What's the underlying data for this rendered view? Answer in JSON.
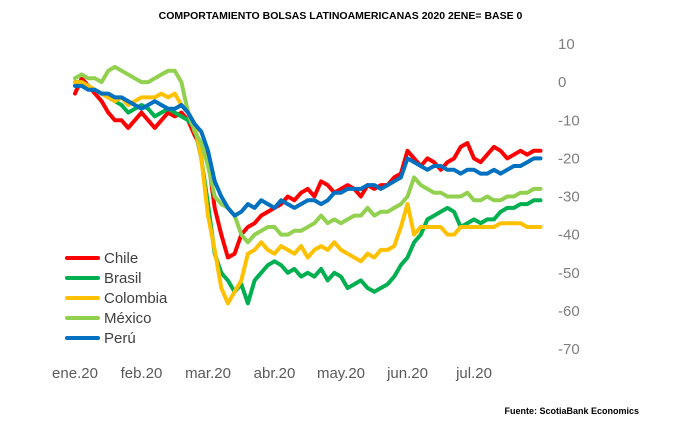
{
  "title": "COMPORTAMIENTO BOLSAS LATINOAMERICANAS 2020   2ENE= BASE 0",
  "source": "Fuente: ScotiaBank Economics",
  "chart_data": {
    "type": "line",
    "title": "COMPORTAMIENTO BOLSAS LATINOAMERICANAS 2020   2ENE= BASE 0",
    "xlabel": "",
    "ylabel": "",
    "ylim": [
      -70,
      10
    ],
    "yticks": [
      10,
      0,
      -10,
      -20,
      -30,
      -40,
      -50,
      -60,
      -70
    ],
    "y_axis_position": "right",
    "x_tick_labels": [
      "ene.20",
      "feb.20",
      "mar.20",
      "abr.20",
      "may.20",
      "jun.20",
      "jul.20"
    ],
    "x_tick_positions": [
      0,
      1,
      2,
      3,
      4,
      5,
      6
    ],
    "legend_position": "bottom-left",
    "grid": false,
    "series": [
      {
        "name": "Chile",
        "color": "#ff0000",
        "x": [
          0,
          0.1,
          0.2,
          0.3,
          0.4,
          0.5,
          0.6,
          0.7,
          0.8,
          0.9,
          1,
          1.1,
          1.2,
          1.3,
          1.4,
          1.5,
          1.6,
          1.7,
          1.8,
          1.9,
          2,
          2.1,
          2.2,
          2.3,
          2.4,
          2.5,
          2.6,
          2.7,
          2.8,
          2.9,
          3,
          3.1,
          3.2,
          3.3,
          3.4,
          3.5,
          3.6,
          3.7,
          3.8,
          3.9,
          4,
          4.1,
          4.2,
          4.3,
          4.4,
          4.5,
          4.6,
          4.7,
          4.8,
          4.9,
          5,
          5.1,
          5.2,
          5.3,
          5.4,
          5.5,
          5.6,
          5.7,
          5.8,
          5.9,
          6,
          6.1,
          6.2,
          6.3,
          6.4,
          6.5,
          6.6,
          6.7,
          6.8,
          6.9,
          7
        ],
        "y": [
          -3,
          1,
          -1,
          -3,
          -5,
          -8,
          -10,
          -10,
          -12,
          -10,
          -8,
          -10,
          -12,
          -10,
          -8,
          -9,
          -8,
          -10,
          -14,
          -17,
          -20,
          -33,
          -40,
          -46,
          -45,
          -40,
          -38,
          -37,
          -35,
          -34,
          -33,
          -32,
          -30,
          -31,
          -29,
          -28,
          -30,
          -26,
          -27,
          -29,
          -28,
          -27,
          -28,
          -30,
          -27,
          -28,
          -27,
          -27,
          -25,
          -24,
          -18,
          -20,
          -22,
          -20,
          -21,
          -23,
          -21,
          -20,
          -17,
          -16,
          -20,
          -21,
          -19,
          -17,
          -18,
          -20,
          -19,
          -18,
          -19,
          -18,
          -18
        ]
      },
      {
        "name": "Brasil",
        "color": "#00b050",
        "x": [
          0,
          0.1,
          0.2,
          0.3,
          0.4,
          0.5,
          0.6,
          0.7,
          0.8,
          0.9,
          1,
          1.1,
          1.2,
          1.3,
          1.4,
          1.5,
          1.6,
          1.7,
          1.8,
          1.9,
          2,
          2.1,
          2.2,
          2.3,
          2.4,
          2.5,
          2.6,
          2.7,
          2.8,
          2.9,
          3,
          3.1,
          3.2,
          3.3,
          3.4,
          3.5,
          3.6,
          3.7,
          3.8,
          3.9,
          4,
          4.1,
          4.2,
          4.3,
          4.4,
          4.5,
          4.6,
          4.7,
          4.8,
          4.9,
          5,
          5.1,
          5.2,
          5.3,
          5.4,
          5.5,
          5.6,
          5.7,
          5.8,
          5.9,
          6,
          6.1,
          6.2,
          6.3,
          6.4,
          6.5,
          6.6,
          6.7,
          6.8,
          6.9,
          7
        ],
        "y": [
          0,
          0,
          -1,
          -2,
          -3,
          -4,
          -5,
          -6,
          -8,
          -7,
          -6,
          -7,
          -9,
          -8,
          -7,
          -8,
          -9,
          -10,
          -12,
          -20,
          -32,
          -45,
          -50,
          -52,
          -55,
          -53,
          -58,
          -52,
          -50,
          -48,
          -47,
          -48,
          -50,
          -49,
          -51,
          -50,
          -51,
          -49,
          -52,
          -50,
          -51,
          -54,
          -53,
          -52,
          -54,
          -55,
          -54,
          -53,
          -51,
          -48,
          -46,
          -42,
          -40,
          -36,
          -35,
          -34,
          -33,
          -34,
          -38,
          -37,
          -36,
          -37,
          -36,
          -36,
          -34,
          -33,
          -33,
          -32,
          -32,
          -31,
          -31
        ]
      },
      {
        "name": "Colombia",
        "color": "#ffc000",
        "x": [
          0,
          0.1,
          0.2,
          0.3,
          0.4,
          0.5,
          0.6,
          0.7,
          0.8,
          0.9,
          1,
          1.1,
          1.2,
          1.3,
          1.4,
          1.5,
          1.6,
          1.7,
          1.8,
          1.9,
          2,
          2.1,
          2.2,
          2.3,
          2.4,
          2.5,
          2.6,
          2.7,
          2.8,
          2.9,
          3,
          3.1,
          3.2,
          3.3,
          3.4,
          3.5,
          3.6,
          3.7,
          3.8,
          3.9,
          4,
          4.1,
          4.2,
          4.3,
          4.4,
          4.5,
          4.6,
          4.7,
          4.8,
          4.9,
          5,
          5.1,
          5.2,
          5.3,
          5.4,
          5.5,
          5.6,
          5.7,
          5.8,
          5.9,
          6,
          6.1,
          6.2,
          6.3,
          6.4,
          6.5,
          6.6,
          6.7,
          6.8,
          6.9,
          7
        ],
        "y": [
          0,
          0,
          -1,
          -2,
          -3,
          -4,
          -5,
          -4,
          -6,
          -5,
          -4,
          -4,
          -4,
          -3,
          -4,
          -3,
          -6,
          -8,
          -11,
          -20,
          -35,
          -44,
          -54,
          -58,
          -55,
          -52,
          -45,
          -44,
          -42,
          -44,
          -45,
          -43,
          -44,
          -45,
          -43,
          -46,
          -44,
          -43,
          -44,
          -42,
          -44,
          -45,
          -46,
          -47,
          -45,
          -46,
          -44,
          -44,
          -43,
          -38,
          -32,
          -40,
          -38,
          -38,
          -38,
          -38,
          -40,
          -40,
          -38,
          -38,
          -38,
          -38,
          -38,
          -38,
          -37,
          -37,
          -37,
          -37,
          -38,
          -38,
          -38
        ]
      },
      {
        "name": "México",
        "color": "#92d050",
        "x": [
          0,
          0.1,
          0.2,
          0.3,
          0.4,
          0.5,
          0.6,
          0.7,
          0.8,
          0.9,
          1,
          1.1,
          1.2,
          1.3,
          1.4,
          1.5,
          1.6,
          1.7,
          1.8,
          1.9,
          2,
          2.1,
          2.2,
          2.3,
          2.4,
          2.5,
          2.6,
          2.7,
          2.8,
          2.9,
          3,
          3.1,
          3.2,
          3.3,
          3.4,
          3.5,
          3.6,
          3.7,
          3.8,
          3.9,
          4,
          4.1,
          4.2,
          4.3,
          4.4,
          4.5,
          4.6,
          4.7,
          4.8,
          4.9,
          5,
          5.1,
          5.2,
          5.3,
          5.4,
          5.5,
          5.6,
          5.7,
          5.8,
          5.9,
          6,
          6.1,
          6.2,
          6.3,
          6.4,
          6.5,
          6.6,
          6.7,
          6.8,
          6.9,
          7
        ],
        "y": [
          1,
          2,
          1,
          1,
          0,
          3,
          4,
          3,
          2,
          1,
          0,
          0,
          1,
          2,
          3,
          3,
          0,
          -8,
          -13,
          -16,
          -22,
          -30,
          -32,
          -33,
          -35,
          -40,
          -42,
          -40,
          -39,
          -38,
          -38,
          -40,
          -40,
          -39,
          -39,
          -38,
          -37,
          -35,
          -37,
          -36,
          -37,
          -36,
          -35,
          -35,
          -33,
          -35,
          -34,
          -34,
          -33,
          -32,
          -30,
          -25,
          -27,
          -28,
          -29,
          -29,
          -30,
          -30,
          -30,
          -29,
          -31,
          -31,
          -30,
          -31,
          -31,
          -30,
          -30,
          -29,
          -29,
          -28,
          -28
        ]
      },
      {
        "name": "Perú",
        "color": "#0070c0",
        "x": [
          0,
          0.1,
          0.2,
          0.3,
          0.4,
          0.5,
          0.6,
          0.7,
          0.8,
          0.9,
          1,
          1.1,
          1.2,
          1.3,
          1.4,
          1.5,
          1.6,
          1.7,
          1.8,
          1.9,
          2,
          2.1,
          2.2,
          2.3,
          2.4,
          2.5,
          2.6,
          2.7,
          2.8,
          2.9,
          3,
          3.1,
          3.2,
          3.3,
          3.4,
          3.5,
          3.6,
          3.7,
          3.8,
          3.9,
          4,
          4.1,
          4.2,
          4.3,
          4.4,
          4.5,
          4.6,
          4.7,
          4.8,
          4.9,
          5,
          5.1,
          5.2,
          5.3,
          5.4,
          5.5,
          5.6,
          5.7,
          5.8,
          5.9,
          6,
          6.1,
          6.2,
          6.3,
          6.4,
          6.5,
          6.6,
          6.7,
          6.8,
          6.9,
          7
        ],
        "y": [
          -1,
          -1,
          -2,
          -2,
          -3,
          -3,
          -4,
          -4,
          -5,
          -6,
          -7,
          -6,
          -5,
          -6,
          -7,
          -7,
          -6,
          -8,
          -11,
          -13,
          -18,
          -26,
          -30,
          -33,
          -35,
          -34,
          -32,
          -33,
          -31,
          -32,
          -33,
          -31,
          -32,
          -33,
          -32,
          -31,
          -31,
          -32,
          -31,
          -29,
          -29,
          -28,
          -28,
          -28,
          -27,
          -27,
          -28,
          -27,
          -26,
          -25,
          -20,
          -21,
          -22,
          -23,
          -22,
          -22,
          -23,
          -23,
          -24,
          -23,
          -23,
          -24,
          -24,
          -23,
          -24,
          -23,
          -22,
          -22,
          -21,
          -20,
          -20
        ]
      }
    ]
  }
}
